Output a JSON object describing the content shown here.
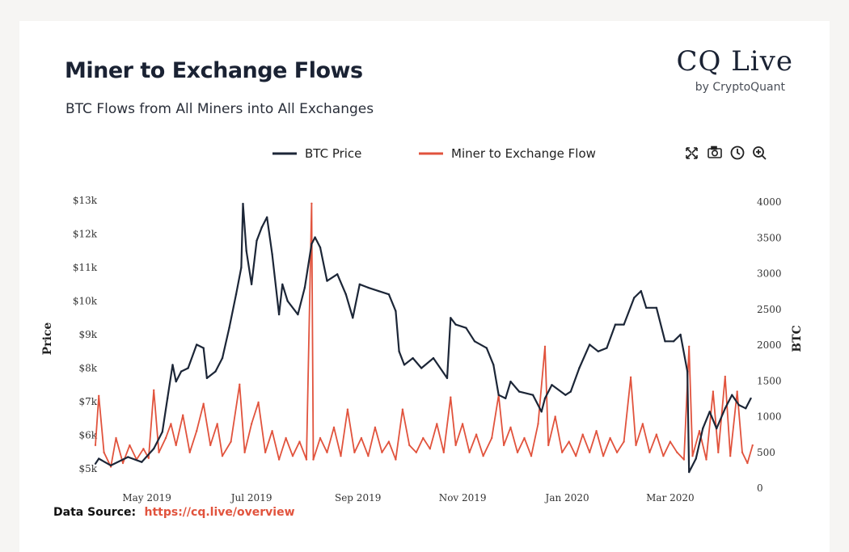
{
  "header": {
    "title": "Miner to Exchange Flows",
    "subtitle": "BTC Flows from All Miners into All Exchanges"
  },
  "logo": {
    "main": "CQ Live",
    "sub": "by CryptoQuant"
  },
  "footer": {
    "label": "Data Source:",
    "link": "https://cq.live/overview"
  },
  "toolbar": {
    "icons": [
      "fullscreen-icon",
      "camera-icon",
      "history-icon",
      "zoom-in-icon"
    ]
  },
  "colors": {
    "price": "#1c2637",
    "flow": "#e1533d"
  },
  "chart_data": {
    "type": "line",
    "legend": [
      "BTC Price",
      "Miner to Exchange Flow"
    ],
    "legend_position": "top-center",
    "y_left": {
      "label": "Price",
      "range": [
        4900,
        13000
      ],
      "ticks": [
        5000,
        6000,
        7000,
        8000,
        9000,
        10000,
        11000,
        12000,
        13000
      ],
      "tick_labels": [
        "$5k",
        "$6k",
        "$7k",
        "$8k",
        "$9k",
        "$10k",
        "$11k",
        "$12k",
        "$13k"
      ]
    },
    "y_right": {
      "label": "BTC",
      "range": [
        0,
        4000
      ],
      "ticks": [
        0,
        500,
        1000,
        1500,
        2000,
        2500,
        3000,
        3500,
        4000
      ],
      "tick_labels": [
        "0",
        "500",
        "1000",
        "1500",
        "2000",
        "2500",
        "3000",
        "3500",
        "4000"
      ]
    },
    "x": {
      "range": [
        "2019-04-01",
        "2020-04-20"
      ],
      "ticks": [
        "2019-05-01",
        "2019-07-01",
        "2019-09-01",
        "2019-11-01",
        "2020-01-01",
        "2020-03-01"
      ],
      "tick_labels": [
        "May 2019",
        "Jul 2019",
        "Sep 2019",
        "Nov 2019",
        "Jan 2020",
        "Mar 2020"
      ]
    },
    "grid": false,
    "series": [
      {
        "name": "BTC Price",
        "axis": "left",
        "points": [
          [
            "2019-04-01",
            5150
          ],
          [
            "2019-04-03",
            5300
          ],
          [
            "2019-04-10",
            5100
          ],
          [
            "2019-04-20",
            5350
          ],
          [
            "2019-04-28",
            5200
          ],
          [
            "2019-05-05",
            5600
          ],
          [
            "2019-05-10",
            6100
          ],
          [
            "2019-05-13",
            7100
          ],
          [
            "2019-05-16",
            8100
          ],
          [
            "2019-05-18",
            7600
          ],
          [
            "2019-05-21",
            7900
          ],
          [
            "2019-05-25",
            8000
          ],
          [
            "2019-05-30",
            8700
          ],
          [
            "2019-06-03",
            8600
          ],
          [
            "2019-06-05",
            7700
          ],
          [
            "2019-06-10",
            7900
          ],
          [
            "2019-06-14",
            8300
          ],
          [
            "2019-06-18",
            9200
          ],
          [
            "2019-06-22",
            10200
          ],
          [
            "2019-06-25",
            11000
          ],
          [
            "2019-06-26",
            12900
          ],
          [
            "2019-06-28",
            11500
          ],
          [
            "2019-07-01",
            10500
          ],
          [
            "2019-07-04",
            11800
          ],
          [
            "2019-07-07",
            12200
          ],
          [
            "2019-07-10",
            12500
          ],
          [
            "2019-07-13",
            11400
          ],
          [
            "2019-07-17",
            9600
          ],
          [
            "2019-07-19",
            10500
          ],
          [
            "2019-07-22",
            10000
          ],
          [
            "2019-07-28",
            9600
          ],
          [
            "2019-08-01",
            10400
          ],
          [
            "2019-08-05",
            11700
          ],
          [
            "2019-08-07",
            11900
          ],
          [
            "2019-08-10",
            11600
          ],
          [
            "2019-08-14",
            10600
          ],
          [
            "2019-08-20",
            10800
          ],
          [
            "2019-08-25",
            10200
          ],
          [
            "2019-08-29",
            9500
          ],
          [
            "2019-09-02",
            10500
          ],
          [
            "2019-09-07",
            10400
          ],
          [
            "2019-09-13",
            10300
          ],
          [
            "2019-09-19",
            10200
          ],
          [
            "2019-09-23",
            9700
          ],
          [
            "2019-09-25",
            8500
          ],
          [
            "2019-09-28",
            8100
          ],
          [
            "2019-10-03",
            8300
          ],
          [
            "2019-10-08",
            8000
          ],
          [
            "2019-10-15",
            8300
          ],
          [
            "2019-10-23",
            7700
          ],
          [
            "2019-10-25",
            9500
          ],
          [
            "2019-10-28",
            9300
          ],
          [
            "2019-11-03",
            9200
          ],
          [
            "2019-11-08",
            8800
          ],
          [
            "2019-11-15",
            8600
          ],
          [
            "2019-11-19",
            8100
          ],
          [
            "2019-11-22",
            7200
          ],
          [
            "2019-11-26",
            7100
          ],
          [
            "2019-11-29",
            7600
          ],
          [
            "2019-12-04",
            7300
          ],
          [
            "2019-12-12",
            7200
          ],
          [
            "2019-12-17",
            6700
          ],
          [
            "2019-12-19",
            7100
          ],
          [
            "2019-12-23",
            7500
          ],
          [
            "2019-12-31",
            7200
          ],
          [
            "2020-01-03",
            7300
          ],
          [
            "2020-01-08",
            8000
          ],
          [
            "2020-01-14",
            8700
          ],
          [
            "2020-01-19",
            8500
          ],
          [
            "2020-01-24",
            8600
          ],
          [
            "2020-01-29",
            9300
          ],
          [
            "2020-02-03",
            9300
          ],
          [
            "2020-02-09",
            10100
          ],
          [
            "2020-02-13",
            10300
          ],
          [
            "2020-02-16",
            9800
          ],
          [
            "2020-02-22",
            9800
          ],
          [
            "2020-02-27",
            8800
          ],
          [
            "2020-03-03",
            8800
          ],
          [
            "2020-03-07",
            9000
          ],
          [
            "2020-03-11",
            7900
          ],
          [
            "2020-03-12",
            4900
          ],
          [
            "2020-03-16",
            5300
          ],
          [
            "2020-03-20",
            6200
          ],
          [
            "2020-03-24",
            6700
          ],
          [
            "2020-03-28",
            6200
          ],
          [
            "2020-04-02",
            6800
          ],
          [
            "2020-04-06",
            7200
          ],
          [
            "2020-04-10",
            6900
          ],
          [
            "2020-04-14",
            6800
          ],
          [
            "2020-04-17",
            7100
          ]
        ]
      },
      {
        "name": "Miner to Exchange Flow",
        "axis": "right",
        "points": [
          [
            "2019-04-01",
            600
          ],
          [
            "2019-04-03",
            1290
          ],
          [
            "2019-04-06",
            500
          ],
          [
            "2019-04-10",
            300
          ],
          [
            "2019-04-13",
            700
          ],
          [
            "2019-04-17",
            350
          ],
          [
            "2019-04-21",
            600
          ],
          [
            "2019-04-25",
            400
          ],
          [
            "2019-04-29",
            550
          ],
          [
            "2019-05-02",
            420
          ],
          [
            "2019-05-05",
            1370
          ],
          [
            "2019-05-08",
            500
          ],
          [
            "2019-05-12",
            700
          ],
          [
            "2019-05-15",
            900
          ],
          [
            "2019-05-18",
            600
          ],
          [
            "2019-05-22",
            1020
          ],
          [
            "2019-05-26",
            500
          ],
          [
            "2019-05-30",
            800
          ],
          [
            "2019-06-03",
            1180
          ],
          [
            "2019-06-07",
            600
          ],
          [
            "2019-06-11",
            900
          ],
          [
            "2019-06-14",
            450
          ],
          [
            "2019-06-19",
            650
          ],
          [
            "2019-06-24",
            1450
          ],
          [
            "2019-06-27",
            500
          ],
          [
            "2019-07-01",
            900
          ],
          [
            "2019-07-05",
            1200
          ],
          [
            "2019-07-09",
            500
          ],
          [
            "2019-07-13",
            800
          ],
          [
            "2019-07-17",
            400
          ],
          [
            "2019-07-21",
            700
          ],
          [
            "2019-07-25",
            450
          ],
          [
            "2019-07-29",
            650
          ],
          [
            "2019-08-02",
            400
          ],
          [
            "2019-08-05",
            3980
          ],
          [
            "2019-08-06",
            400
          ],
          [
            "2019-08-10",
            700
          ],
          [
            "2019-08-14",
            500
          ],
          [
            "2019-08-18",
            850
          ],
          [
            "2019-08-22",
            450
          ],
          [
            "2019-08-26",
            1100
          ],
          [
            "2019-08-30",
            500
          ],
          [
            "2019-09-03",
            700
          ],
          [
            "2019-09-07",
            450
          ],
          [
            "2019-09-11",
            850
          ],
          [
            "2019-09-15",
            500
          ],
          [
            "2019-09-19",
            650
          ],
          [
            "2019-09-23",
            400
          ],
          [
            "2019-09-27",
            1100
          ],
          [
            "2019-10-01",
            600
          ],
          [
            "2019-10-05",
            500
          ],
          [
            "2019-10-09",
            700
          ],
          [
            "2019-10-13",
            550
          ],
          [
            "2019-10-17",
            900
          ],
          [
            "2019-10-21",
            500
          ],
          [
            "2019-10-25",
            1270
          ],
          [
            "2019-10-28",
            600
          ],
          [
            "2019-11-01",
            900
          ],
          [
            "2019-11-05",
            500
          ],
          [
            "2019-11-09",
            750
          ],
          [
            "2019-11-13",
            450
          ],
          [
            "2019-11-18",
            700
          ],
          [
            "2019-11-22",
            1300
          ],
          [
            "2019-11-25",
            600
          ],
          [
            "2019-11-29",
            850
          ],
          [
            "2019-12-03",
            500
          ],
          [
            "2019-12-07",
            700
          ],
          [
            "2019-12-11",
            450
          ],
          [
            "2019-12-15",
            900
          ],
          [
            "2019-12-19",
            1980
          ],
          [
            "2019-12-21",
            600
          ],
          [
            "2019-12-25",
            1000
          ],
          [
            "2019-12-29",
            500
          ],
          [
            "2020-01-02",
            650
          ],
          [
            "2020-01-06",
            450
          ],
          [
            "2020-01-10",
            750
          ],
          [
            "2020-01-14",
            500
          ],
          [
            "2020-01-18",
            800
          ],
          [
            "2020-01-22",
            450
          ],
          [
            "2020-01-26",
            700
          ],
          [
            "2020-01-30",
            500
          ],
          [
            "2020-02-03",
            650
          ],
          [
            "2020-02-07",
            1550
          ],
          [
            "2020-02-10",
            600
          ],
          [
            "2020-02-14",
            900
          ],
          [
            "2020-02-18",
            500
          ],
          [
            "2020-02-22",
            750
          ],
          [
            "2020-02-26",
            450
          ],
          [
            "2020-03-01",
            650
          ],
          [
            "2020-03-05",
            500
          ],
          [
            "2020-03-09",
            400
          ],
          [
            "2020-03-12",
            1980
          ],
          [
            "2020-03-14",
            450
          ],
          [
            "2020-03-18",
            800
          ],
          [
            "2020-03-22",
            400
          ],
          [
            "2020-03-26",
            1350
          ],
          [
            "2020-03-29",
            500
          ],
          [
            "2020-04-02",
            1560
          ],
          [
            "2020-04-05",
            450
          ],
          [
            "2020-04-09",
            1350
          ],
          [
            "2020-04-12",
            500
          ],
          [
            "2020-04-15",
            350
          ],
          [
            "2020-04-18",
            600
          ]
        ]
      }
    ]
  }
}
